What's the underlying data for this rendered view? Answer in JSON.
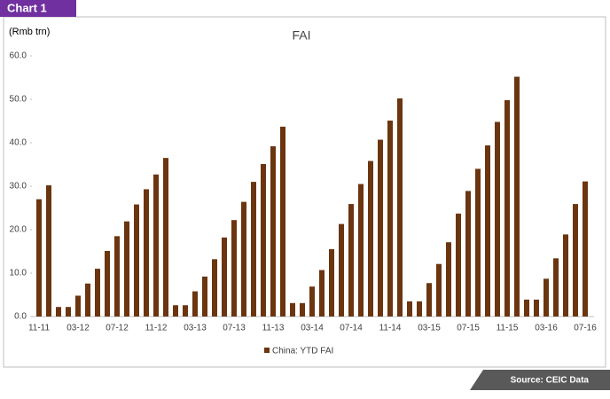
{
  "header": "Chart 1",
  "source": "Source: CEIC Data",
  "chart_data": {
    "type": "bar",
    "title": "FAI",
    "y_label": "(Rmb trn)",
    "categories": [
      "11-11",
      null,
      null,
      null,
      "03-12",
      null,
      null,
      null,
      "07-12",
      null,
      null,
      null,
      "11-12",
      null,
      null,
      null,
      "03-13",
      null,
      null,
      null,
      "07-13",
      null,
      null,
      null,
      "11-13",
      null,
      null,
      null,
      "03-14",
      null,
      null,
      null,
      "07-14",
      null,
      null,
      null,
      "11-14",
      null,
      null,
      null,
      "03-15",
      null,
      null,
      null,
      "07-15",
      null,
      null,
      null,
      "11-15",
      null,
      null,
      null,
      "03-16",
      null,
      null,
      null,
      "07-16"
    ],
    "series": [
      {
        "name": "China: YTD FAI",
        "color": "#6b3510",
        "values": [
          27.0,
          30.2,
          2.2,
          2.2,
          4.8,
          7.6,
          11.0,
          15.1,
          18.5,
          21.9,
          25.8,
          29.3,
          32.7,
          36.5,
          2.6,
          2.6,
          5.8,
          9.2,
          13.2,
          18.2,
          22.2,
          26.4,
          31.0,
          35.1,
          39.2,
          43.7,
          3.1,
          3.1,
          6.9,
          10.7,
          15.5,
          21.3,
          25.9,
          30.5,
          35.8,
          40.7,
          45.1,
          50.2,
          3.5,
          3.5,
          7.7,
          12.1,
          17.1,
          23.7,
          28.9,
          34.0,
          39.4,
          44.8,
          49.8,
          55.2,
          3.9,
          3.9,
          8.7,
          13.4,
          18.9,
          25.9,
          31.1
        ]
      }
    ],
    "ylim": [
      0,
      60
    ],
    "yticks": [
      {
        "value": 0,
        "label": "0.0"
      },
      {
        "value": 10,
        "label": "10.0"
      },
      {
        "value": 20,
        "label": "20.0"
      },
      {
        "value": 30,
        "label": "30.0"
      },
      {
        "value": 40,
        "label": "40.0"
      },
      {
        "value": 50,
        "label": "50.0"
      },
      {
        "value": 60,
        "label": "60.0"
      }
    ],
    "grid": false,
    "legend": "bottom"
  }
}
